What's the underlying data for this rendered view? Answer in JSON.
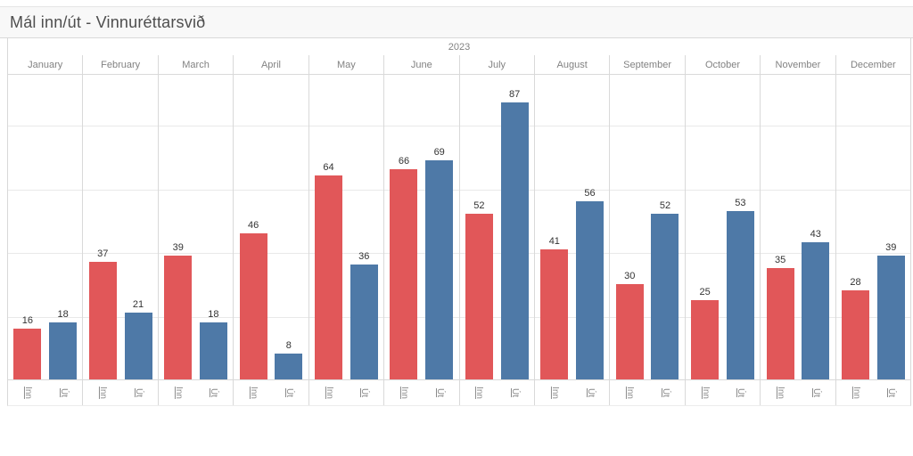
{
  "title": {
    "text": "Mál inn/út - Vinnuréttarsvið"
  },
  "chart_data": {
    "type": "bar",
    "title": "Mál inn/út - Vinnuréttarsvið",
    "year_header": "2023",
    "categories": [
      "January",
      "February",
      "March",
      "April",
      "May",
      "June",
      "July",
      "August",
      "September",
      "October",
      "November",
      "December"
    ],
    "series": [
      {
        "name": "Inn",
        "color": "#e15759",
        "values": [
          16,
          37,
          39,
          46,
          64,
          66,
          52,
          41,
          30,
          25,
          35,
          28
        ]
      },
      {
        "name": "Út",
        "color": "#4e79a7",
        "values": [
          18,
          21,
          18,
          8,
          36,
          69,
          87,
          56,
          52,
          53,
          43,
          39
        ]
      }
    ],
    "ylim": [
      0,
      96
    ],
    "gridline_values": [
      20,
      40,
      60,
      80
    ],
    "grid": "horizontal light-gray gridlines, y-axis labels hidden",
    "value_labels": true,
    "legend_position": "none (series named on x-axis below each bar)",
    "x_axis_bar_labels_rotated": true
  },
  "colors": {
    "inn_bar": "#e15759",
    "ut_bar": "#4e79a7",
    "gridline": "#e9e9e9",
    "divider": "#d9d9d9",
    "header_text": "#828282",
    "value_label_text": "#333333",
    "title_text": "#4e4e4e",
    "title_bg": "#f8f8f8"
  }
}
